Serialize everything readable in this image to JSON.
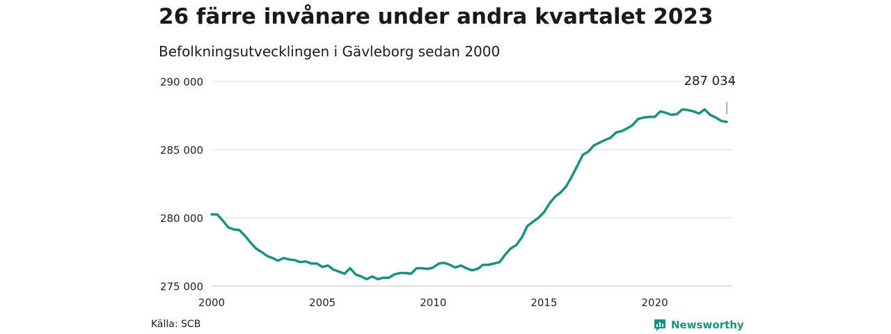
{
  "header": {
    "title": "26 färre invånare under andra kvartalet 2023",
    "subtitle": "Befolkningsutvecklingen i Gävleborg sedan 2000"
  },
  "footer": {
    "source": "Källa: SCB",
    "brand": "Newsworthy",
    "brand_color": "#1a9080"
  },
  "chart_data": {
    "type": "line",
    "title": "26 färre invånare under andra kvartalet 2023",
    "subtitle": "Befolkningsutvecklingen i Gävleborg sedan 2000",
    "xlabel": "",
    "ylabel": "",
    "grid": "horizontal",
    "legend": "none",
    "ylim": [
      275000,
      290000
    ],
    "xlim": [
      2000,
      2023.5
    ],
    "x_ticks": [
      2000,
      2005,
      2010,
      2015,
      2020
    ],
    "x_tick_labels": [
      "2000",
      "2005",
      "2010",
      "2015",
      "2020"
    ],
    "y_ticks": [
      275000,
      280000,
      285000,
      290000
    ],
    "y_tick_labels": [
      "275 000",
      "280 000",
      "285 000",
      "290 000"
    ],
    "line_color": "#1a9080",
    "annotation": {
      "label": "287 034",
      "x": 2023.25,
      "y": 287034
    },
    "series": [
      {
        "x": [
          2000.0,
          2000.25,
          2000.5,
          2000.75,
          2001.0,
          2001.25,
          2001.5,
          2001.75,
          2002.0,
          2002.25,
          2002.5,
          2002.75,
          2003.0,
          2003.25,
          2003.5,
          2003.75,
          2004.0,
          2004.25,
          2004.5,
          2004.75,
          2005.0,
          2005.25,
          2005.5,
          2005.75,
          2006.0,
          2006.25,
          2006.5,
          2006.75,
          2007.0,
          2007.25,
          2007.5,
          2007.75,
          2008.0,
          2008.25,
          2008.5,
          2008.75,
          2009.0,
          2009.25,
          2009.5,
          2009.75,
          2010.0,
          2010.25,
          2010.5,
          2010.75,
          2011.0,
          2011.25,
          2011.5,
          2011.75,
          2012.0,
          2012.25,
          2012.5,
          2012.75,
          2013.0,
          2013.25,
          2013.5,
          2013.75,
          2014.0,
          2014.25,
          2014.5,
          2014.75,
          2015.0,
          2015.25,
          2015.5,
          2015.75,
          2016.0,
          2016.25,
          2016.5,
          2016.75,
          2017.0,
          2017.25,
          2017.5,
          2017.75,
          2018.0,
          2018.25,
          2018.5,
          2018.75,
          2019.0,
          2019.25,
          2019.5,
          2019.75,
          2020.0,
          2020.25,
          2020.5,
          2020.75,
          2021.0,
          2021.25,
          2021.5,
          2021.75,
          2022.0,
          2022.25,
          2022.5,
          2022.75,
          2023.0,
          2023.25
        ],
        "values": [
          280250,
          280250,
          279800,
          279300,
          279150,
          279100,
          278700,
          278200,
          277750,
          277500,
          277200,
          277050,
          276850,
          277050,
          276950,
          276900,
          276750,
          276800,
          276650,
          276650,
          276400,
          276500,
          276200,
          276050,
          275900,
          276300,
          275850,
          275700,
          275500,
          275700,
          275500,
          275600,
          275600,
          275850,
          275950,
          275950,
          275900,
          276300,
          276300,
          276250,
          276350,
          276650,
          276700,
          276550,
          276350,
          276500,
          276300,
          276150,
          276250,
          276550,
          276550,
          276650,
          276750,
          277300,
          277750,
          278000,
          278550,
          279400,
          279700,
          280000,
          280400,
          281050,
          281550,
          281850,
          282300,
          283000,
          283800,
          284600,
          284850,
          285300,
          285500,
          285700,
          285850,
          286250,
          286350,
          286550,
          286800,
          287250,
          287350,
          287400,
          287400,
          287800,
          287700,
          287550,
          287600,
          287950,
          287900,
          287800,
          287650,
          287950,
          287550,
          287350,
          287100,
          287034
        ]
      }
    ]
  }
}
